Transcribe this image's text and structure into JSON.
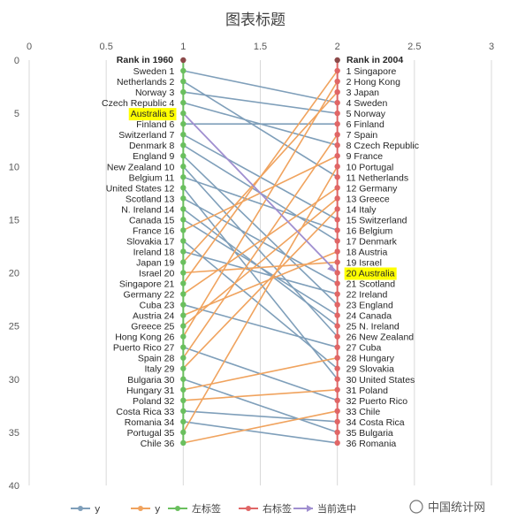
{
  "chart_data": {
    "type": "slope",
    "title": "图表标题",
    "xlim": [
      0,
      3
    ],
    "x_ticks": [
      "0",
      "0.5",
      "1",
      "1.5",
      "2",
      "2.5",
      "3"
    ],
    "ylim": [
      0,
      40
    ],
    "y_ticks": [
      "0",
      "5",
      "10",
      "15",
      "20",
      "25",
      "30",
      "35",
      "40"
    ],
    "left_header": "Rank in 1960",
    "right_header": "Rank in 2004",
    "left_x": 1,
    "right_x": 2,
    "countries": [
      {
        "name": "Sweden",
        "r1960": 1,
        "r2004": 4
      },
      {
        "name": "Netherlands",
        "r1960": 2,
        "r2004": 11
      },
      {
        "name": "Norway",
        "r1960": 3,
        "r2004": 5
      },
      {
        "name": "Czech Republic",
        "r1960": 4,
        "r2004": 8
      },
      {
        "name": "Australia",
        "r1960": 5,
        "r2004": 20
      },
      {
        "name": "Finland",
        "r1960": 6,
        "r2004": 6
      },
      {
        "name": "Switzerland",
        "r1960": 7,
        "r2004": 15
      },
      {
        "name": "Denmark",
        "r1960": 8,
        "r2004": 17
      },
      {
        "name": "England",
        "r1960": 9,
        "r2004": 23
      },
      {
        "name": "New Zealand",
        "r1960": 10,
        "r2004": 26
      },
      {
        "name": "Belgium",
        "r1960": 11,
        "r2004": 16
      },
      {
        "name": "United States",
        "r1960": 12,
        "r2004": 30
      },
      {
        "name": "Scotland",
        "r1960": 13,
        "r2004": 21
      },
      {
        "name": "N. Ireland",
        "r1960": 14,
        "r2004": 25
      },
      {
        "name": "Canada",
        "r1960": 15,
        "r2004": 24
      },
      {
        "name": "France",
        "r1960": 16,
        "r2004": 9
      },
      {
        "name": "Slovakia",
        "r1960": 17,
        "r2004": 29
      },
      {
        "name": "Ireland",
        "r1960": 18,
        "r2004": 22
      },
      {
        "name": "Japan",
        "r1960": 19,
        "r2004": 3
      },
      {
        "name": "Israel",
        "r1960": 20,
        "r2004": 19
      },
      {
        "name": "Singapore",
        "r1960": 21,
        "r2004": 1
      },
      {
        "name": "Germany",
        "r1960": 22,
        "r2004": 12
      },
      {
        "name": "Cuba",
        "r1960": 23,
        "r2004": 27
      },
      {
        "name": "Austria",
        "r1960": 24,
        "r2004": 18
      },
      {
        "name": "Greece",
        "r1960": 25,
        "r2004": 13
      },
      {
        "name": "Hong Kong",
        "r1960": 26,
        "r2004": 2
      },
      {
        "name": "Puerto Rico",
        "r1960": 27,
        "r2004": 32
      },
      {
        "name": "Spain",
        "r1960": 28,
        "r2004": 7
      },
      {
        "name": "Italy",
        "r1960": 29,
        "r2004": 14
      },
      {
        "name": "Bulgaria",
        "r1960": 30,
        "r2004": 35
      },
      {
        "name": "Hungary",
        "r1960": 31,
        "r2004": 28
      },
      {
        "name": "Poland",
        "r1960": 32,
        "r2004": 31
      },
      {
        "name": "Costa Rica",
        "r1960": 33,
        "r2004": 34
      },
      {
        "name": "Romania",
        "r1960": 34,
        "r2004": 36
      },
      {
        "name": "Portugal",
        "r1960": 35,
        "r2004": 10
      },
      {
        "name": "Chile",
        "r1960": 36,
        "r2004": 33
      }
    ],
    "highlight": "Australia",
    "legend": [
      {
        "name": "y",
        "color": "#7f9fba",
        "marker": "circle"
      },
      {
        "name": "y",
        "color": "#f0a35e",
        "marker": "circle"
      },
      {
        "name": "左标签",
        "color": "#6abf5e",
        "marker": "circle"
      },
      {
        "name": "右标签",
        "color": "#e06666",
        "marker": "circle"
      },
      {
        "name": "当前选中",
        "color": "#a08fd0",
        "marker": "arrow"
      }
    ],
    "colors": {
      "declined": "#7f9fba",
      "improved": "#f0a35e",
      "left_axis": "#6abf5e",
      "right_axis": "#e06666",
      "selected": "#a08fd0",
      "highlight_bg": "#ffff00",
      "grid": "#d9d9d9"
    },
    "grid": true,
    "legend_position": "bottom"
  },
  "watermark": "中国统计网"
}
